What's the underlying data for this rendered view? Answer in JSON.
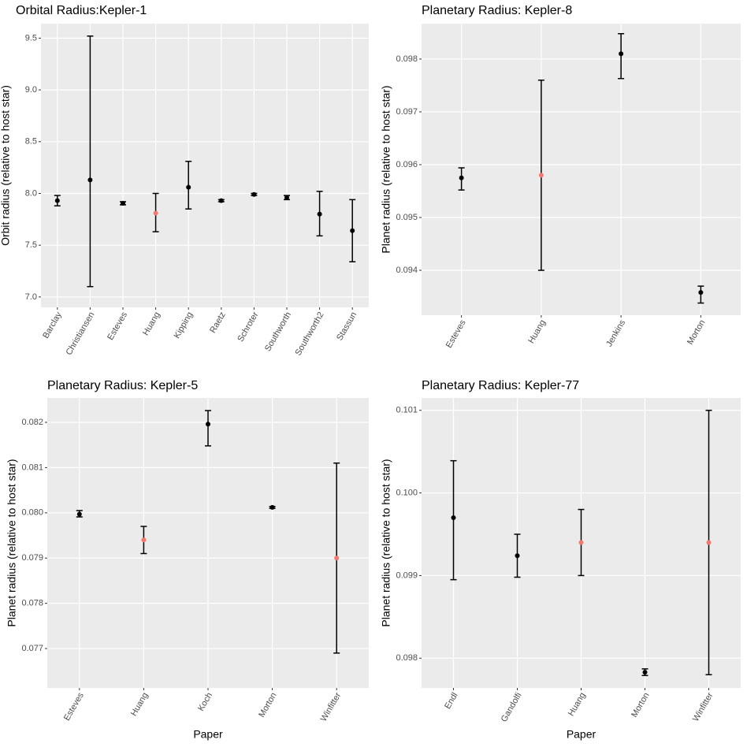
{
  "chart_data": [
    {
      "type": "errorbar",
      "title": "Orbital Radius:Kepler-1",
      "y_label": "Orbit radius (relative to host star)",
      "categories": [
        "Barclay",
        "Christiansen",
        "Esteves",
        "Huang",
        "Kipping",
        "Raetz",
        "Schroter",
        "Southworth",
        "Southworth2",
        "Stassun"
      ],
      "values": [
        7.93,
        8.13,
        7.905,
        7.81,
        8.06,
        7.93,
        7.99,
        7.96,
        7.8,
        7.64
      ],
      "lower": [
        7.88,
        7.1,
        7.89,
        7.63,
        7.85,
        7.92,
        7.98,
        7.94,
        7.59,
        7.34
      ],
      "upper": [
        7.98,
        9.52,
        7.92,
        8.0,
        8.31,
        7.94,
        8.0,
        7.98,
        8.02,
        7.94
      ],
      "colors": [
        "#000000",
        "#000000",
        "#000000",
        "#F8766D",
        "#000000",
        "#000000",
        "#000000",
        "#000000",
        "#000000",
        "#000000"
      ],
      "ylim": [
        6.9,
        9.64
      ],
      "yticks": [
        {
          "value": 7,
          "label": "7.0"
        },
        7.5,
        {
          "value": 8,
          "label": "8.0"
        },
        8.5,
        {
          "value": 9,
          "label": "9.0"
        },
        9.5
      ],
      "grid": true
    },
    {
      "type": "errorbar",
      "title": "Planetary Radius: Kepler-8",
      "y_label": "Planet radius (relative to host star)",
      "categories": [
        "Esteves",
        "Huang",
        "Jenkins",
        "Morton"
      ],
      "values": [
        0.09575,
        0.0958,
        0.0981,
        0.09358
      ],
      "lower": [
        0.09552,
        0.094,
        0.09763,
        0.09338
      ],
      "upper": [
        0.09594,
        0.0976,
        0.09848,
        0.0937
      ],
      "colors": [
        "#000000",
        "#F8766D",
        "#000000",
        "#000000"
      ],
      "ylim": [
        0.09315,
        0.09867
      ],
      "yticks": [
        0.094,
        0.095,
        0.096,
        0.097,
        0.098
      ],
      "grid": true
    },
    {
      "type": "errorbar",
      "title": "Planetary Radius: Kepler-5",
      "y_label": "Planet radius (relative to host star)",
      "x_label": "Paper",
      "categories": [
        "Esteves",
        "Huang",
        "Koch",
        "Morton",
        "Winfitter"
      ],
      "values": [
        0.07997,
        0.0794,
        0.08196,
        0.08012,
        0.079
      ],
      "lower": [
        0.07991,
        0.0791,
        0.08148,
        0.0801,
        0.0769
      ],
      "upper": [
        0.08005,
        0.0797,
        0.08226,
        0.08014,
        0.0811
      ],
      "colors": [
        "#000000",
        "#F8766D",
        "#000000",
        "#000000",
        "#F8766D"
      ],
      "ylim": [
        0.07613,
        0.08254
      ],
      "yticks": [
        0.077,
        0.078,
        0.079,
        {
          "value": 0.08,
          "label": "0.080"
        },
        0.081,
        0.082
      ],
      "grid": true
    },
    {
      "type": "errorbar",
      "title": "Planetary Radius: Kepler-77",
      "y_label": "Planet radius (relative to host star)",
      "x_label": "Paper",
      "categories": [
        "Endl",
        "Gandolfi",
        "Huang",
        "Morton",
        "Winfitter"
      ],
      "values": [
        0.0997,
        0.09924,
        0.0994,
        0.09783,
        0.0994
      ],
      "lower": [
        0.09895,
        0.09898,
        0.099,
        0.09779,
        0.0978
      ],
      "upper": [
        0.10039,
        0.0995,
        0.0998,
        0.09787,
        0.101
      ],
      "colors": [
        "#000000",
        "#000000",
        "#F8766D",
        "#000000",
        "#F8766D"
      ],
      "ylim": [
        0.09764,
        0.10115
      ],
      "yticks": [
        0.098,
        0.099,
        {
          "value": 0.1,
          "label": "0.100"
        },
        0.101
      ],
      "grid": true
    }
  ]
}
